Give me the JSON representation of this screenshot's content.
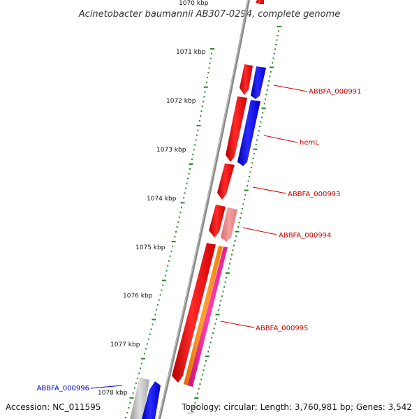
{
  "title": "Acinetobacter baumannii AB307-0294, complete genome",
  "footer": {
    "accession": "Accession: NC_011595",
    "summary": "Topology: circular; Length: 3,760,981 bp; Genes: 3,542"
  },
  "kbp_ticks": [
    "1070 kbp",
    "1071 kbp",
    "1072 kbp",
    "1073 kbp",
    "1074 kbp",
    "1075 kbp",
    "1076 kbp",
    "1077 kbp",
    "1078 kbp"
  ],
  "colors": {
    "backbone": "#888888",
    "tick_green": "#1f8a1f",
    "gene_red": "#ee1111",
    "gene_blue": "#1111ee",
    "gene_pink": "#ee8888",
    "gene_orange": "#ff8800",
    "gene_magenta": "#ee2299",
    "gene_gray": "#bbbbbb",
    "label_red": "#cc0000",
    "label_blue": "#0000cc"
  },
  "gene_labels": [
    {
      "text": "ABBFA_000991",
      "color": "#cc0000"
    },
    {
      "text": "hemL",
      "color": "#cc0000"
    },
    {
      "text": "ABBFA_000993",
      "color": "#cc0000"
    },
    {
      "text": "ABBFA_000994",
      "color": "#cc0000"
    },
    {
      "text": "ABBFA_000995",
      "color": "#cc0000"
    },
    {
      "text": "ABBFA_000996",
      "color": "#0000cc"
    }
  ]
}
